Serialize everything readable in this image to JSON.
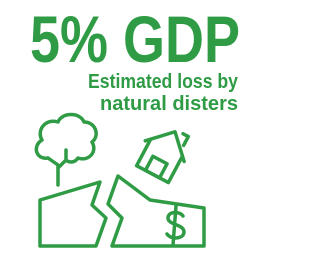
{
  "header": {
    "title": "5% GDP"
  },
  "subtitle": {
    "lines": [
      "Estimated loss by",
      "natural disters"
    ]
  }
}
